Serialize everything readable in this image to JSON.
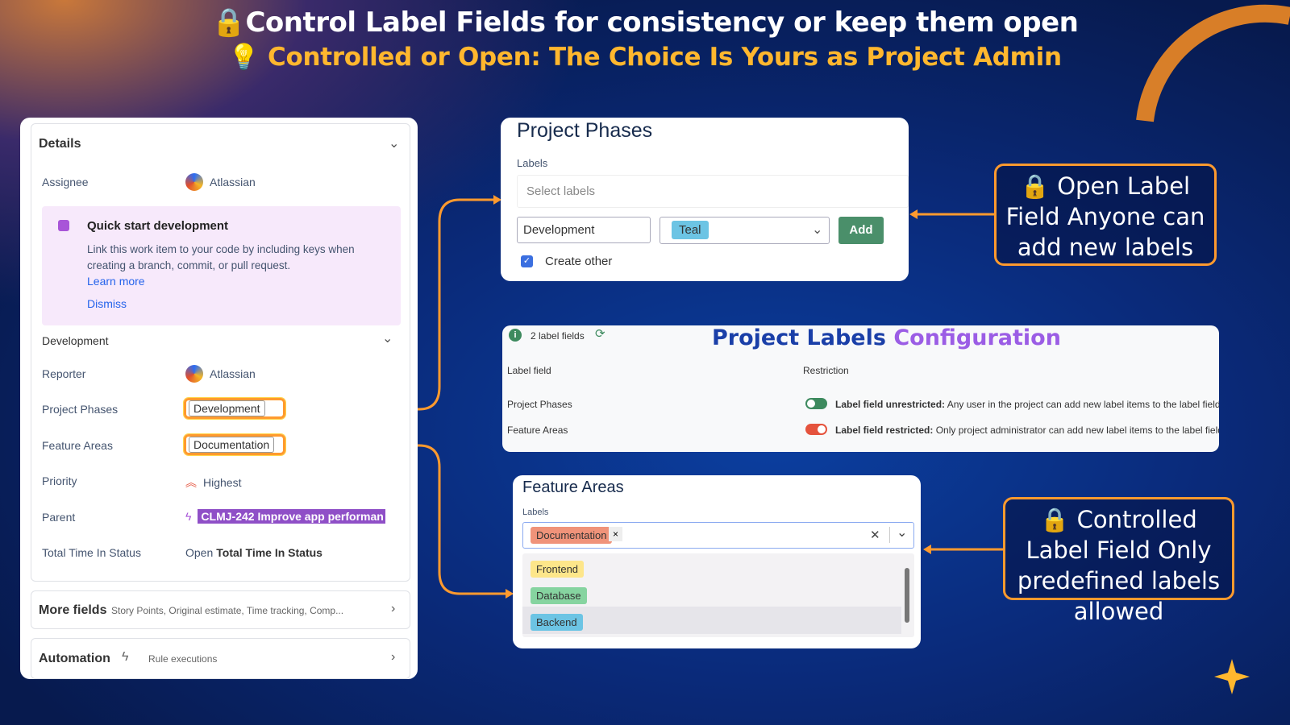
{
  "header": {
    "title": "Control Label Fields for consistency or keep them open",
    "subtitle": "Controlled or Open: The Choice Is Yours as Project Admin",
    "title_icon": "lock-icon",
    "subtitle_icon": "lightbulb-icon"
  },
  "details": {
    "title": "Details",
    "assignee_label": "Assignee",
    "assignee": "Atlassian",
    "quickstart": {
      "title": "Quick start development",
      "text": "Link this work item to your code by including keys when creating a branch, commit, or pull request.",
      "learn_more": "Learn more",
      "dismiss": "Dismiss"
    },
    "development_label": "Development",
    "reporter_label": "Reporter",
    "reporter": "Atlassian",
    "project_phases_label": "Project Phases",
    "project_phases_value": "Development",
    "feature_areas_label": "Feature Areas",
    "feature_areas_value": "Documentation",
    "priority_label": "Priority",
    "priority": "Highest",
    "parent_label": "Parent",
    "parent": "CLMJ-242 Improve app performan",
    "time_label": "Total Time In Status",
    "time_open": "Open",
    "time_value": "Total Time In Status",
    "more_fields": "More fields",
    "more_fields_desc": "Story Points, Original estimate, Time tracking, Comp...",
    "automation": "Automation",
    "automation_desc": "Rule executions"
  },
  "phases_card": {
    "title": "Project Phases",
    "labels_label": "Labels",
    "select_placeholder": "Select labels",
    "name_value": "Development",
    "color_value": "Teal",
    "add_button": "Add",
    "create_other": "Create other",
    "create_other_checked": true
  },
  "config": {
    "count": "2 label fields",
    "title_a": "Project Labels",
    "title_b": "Configuration",
    "col_field": "Label field",
    "col_restriction": "Restriction",
    "rows": [
      {
        "field": "Project Phases",
        "restricted": false,
        "bold": "Label field unrestricted:",
        "text": "Any user in the project can add new label items to the label field"
      },
      {
        "field": "Feature Areas",
        "restricted": true,
        "bold": "Label field restricted:",
        "text": "Only project administrator can add new label items to the label field"
      }
    ]
  },
  "feature_card": {
    "title": "Feature Areas",
    "labels_label": "Labels",
    "selected": "Documentation",
    "options": [
      {
        "label": "Frontend",
        "color": "#fde68a"
      },
      {
        "label": "Database",
        "color": "#86d4a0"
      },
      {
        "label": "Backend",
        "color": "#6cc4e4"
      }
    ]
  },
  "callouts": {
    "open": "Open Label Field Anyone can add new labels",
    "controlled": "Controlled Label Field Only predefined labels allowed"
  },
  "colors": {
    "accent": "#ff9a2e",
    "subtitle": "#ffb72e",
    "add_button": "#4a8f6a",
    "parent_tag": "#8f4fc7"
  }
}
